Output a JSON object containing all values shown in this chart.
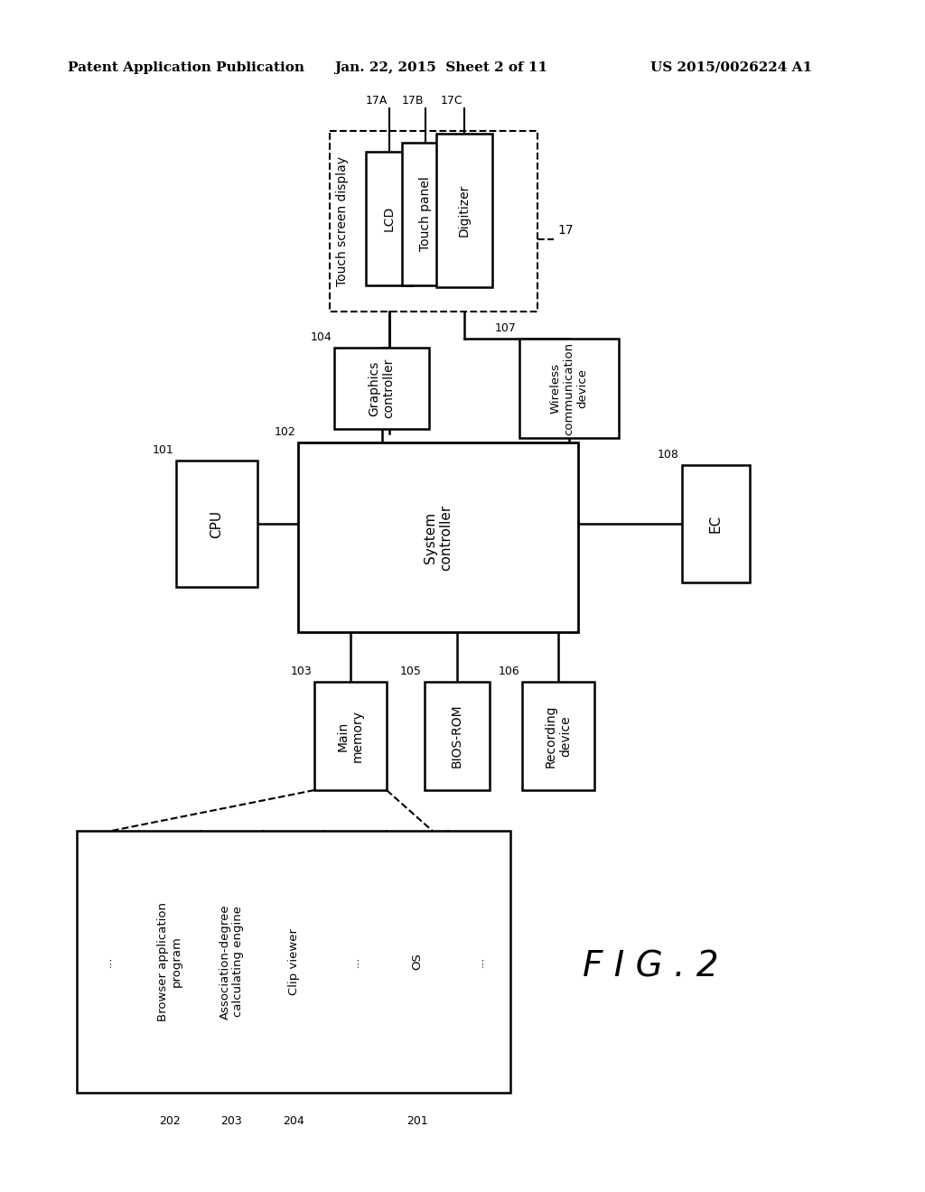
{
  "bg_color": "#ffffff",
  "header_left": "Patent Application Publication",
  "header_mid": "Jan. 22, 2015  Sheet 2 of 11",
  "header_right": "US 2015/0026224 A1",
  "fig_label": "F I G . 2"
}
